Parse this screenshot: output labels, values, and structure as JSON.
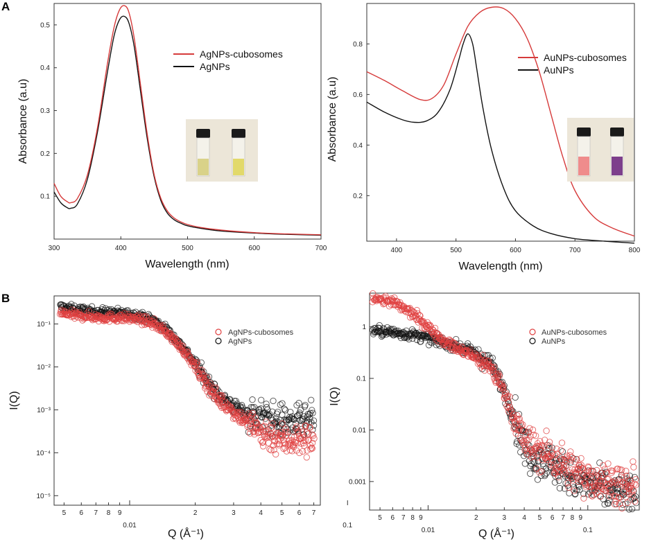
{
  "panels": {
    "a": "A",
    "b": "B"
  },
  "colors": {
    "red": "#d63a3a",
    "black": "#111111",
    "frame": "#333333",
    "photo_bg": "#ece6d8"
  },
  "icons": {
    "ag_inset": "vial-photo-icon",
    "au_inset": "vial-photo-icon"
  },
  "vial_colors": {
    "ag": [
      "#d9d289",
      "#e2d96a"
    ],
    "au": [
      "#ef8c8c",
      "#7d3f8c"
    ]
  },
  "chart_data": [
    {
      "id": "ag_abs",
      "type": "line",
      "panel": "A",
      "xlabel": "Wavelength (nm)",
      "ylabel": "Absorbance (a.u)",
      "xlim": [
        300,
        700
      ],
      "ylim": [
        0,
        0.55
      ],
      "xticks": [
        300,
        400,
        500,
        600,
        700
      ],
      "yticks": [
        0.1,
        0.2,
        0.3,
        0.4,
        0.5
      ],
      "ytick_labels": [
        "0.1",
        "0.2",
        "0.3",
        "0.4",
        "0.5"
      ],
      "series": [
        {
          "name": "AgNPs-cubosomes",
          "color": "#d63a3a",
          "x": [
            300,
            310,
            320,
            325,
            335,
            350,
            365,
            380,
            390,
            398,
            405,
            412,
            420,
            430,
            440,
            450,
            460,
            470,
            480,
            490,
            500,
            520,
            550,
            600,
            650,
            700
          ],
          "y": [
            0.13,
            0.1,
            0.087,
            0.085,
            0.095,
            0.15,
            0.26,
            0.41,
            0.495,
            0.535,
            0.545,
            0.53,
            0.47,
            0.355,
            0.24,
            0.15,
            0.095,
            0.065,
            0.049,
            0.04,
            0.034,
            0.027,
            0.021,
            0.015,
            0.012,
            0.01
          ]
        },
        {
          "name": "AgNPs",
          "color": "#111111",
          "x": [
            300,
            310,
            320,
            325,
            335,
            350,
            365,
            380,
            390,
            398,
            405,
            412,
            420,
            430,
            440,
            450,
            460,
            470,
            480,
            490,
            500,
            520,
            550,
            600,
            650,
            700
          ],
          "y": [
            0.11,
            0.085,
            0.073,
            0.072,
            0.082,
            0.14,
            0.25,
            0.39,
            0.475,
            0.512,
            0.52,
            0.505,
            0.45,
            0.34,
            0.23,
            0.145,
            0.09,
            0.06,
            0.045,
            0.037,
            0.031,
            0.025,
            0.019,
            0.014,
            0.011,
            0.009
          ]
        }
      ]
    },
    {
      "id": "au_abs",
      "type": "line",
      "panel": "A",
      "xlabel": "Wavelength (nm)",
      "ylabel": "Absorbance (a.u)",
      "xlim": [
        350,
        800
      ],
      "ylim": [
        0.02,
        0.96
      ],
      "xticks": [
        400,
        500,
        600,
        700,
        800
      ],
      "yticks": [
        0.2,
        0.4,
        0.6,
        0.8
      ],
      "ytick_labels": [
        "0.2",
        "0.4",
        "0.6",
        "0.8"
      ],
      "series": [
        {
          "name": "AuNPs-cubosomes",
          "color": "#d63a3a",
          "x": [
            350,
            380,
            410,
            440,
            460,
            480,
            500,
            520,
            540,
            560,
            580,
            600,
            620,
            640,
            660,
            680,
            700,
            730,
            760,
            800
          ],
          "y": [
            0.69,
            0.655,
            0.615,
            0.58,
            0.585,
            0.64,
            0.76,
            0.87,
            0.925,
            0.945,
            0.94,
            0.9,
            0.82,
            0.69,
            0.52,
            0.35,
            0.22,
            0.12,
            0.075,
            0.04
          ]
        },
        {
          "name": "AuNPs",
          "color": "#111111",
          "x": [
            350,
            380,
            410,
            430,
            450,
            470,
            490,
            505,
            512,
            520,
            528,
            535,
            545,
            560,
            580,
            600,
            630,
            660,
            700,
            750,
            800
          ],
          "y": [
            0.57,
            0.53,
            0.5,
            0.49,
            0.495,
            0.53,
            0.62,
            0.74,
            0.8,
            0.84,
            0.8,
            0.7,
            0.55,
            0.38,
            0.23,
            0.14,
            0.08,
            0.05,
            0.03,
            0.02,
            0.012
          ]
        }
      ]
    },
    {
      "id": "ag_saxs",
      "type": "scatter",
      "panel": "B",
      "xlabel": "Q (Å⁻¹)",
      "ylabel": "I(Q)",
      "xscale": "log",
      "yscale": "log",
      "xlim": [
        0.0045,
        0.075
      ],
      "ylim": [
        6e-06,
        0.45
      ],
      "xticks_major": [
        0.01,
        0.1
      ],
      "xtick_major_labels": [
        "0.01",
        "0.1"
      ],
      "xticks_minor": [
        0.005,
        0.006,
        0.007,
        0.008,
        0.009,
        0.02,
        0.03,
        0.04,
        0.05,
        0.06,
        0.07
      ],
      "xtick_minor_labels": [
        "5",
        "6",
        "7",
        "8",
        "9",
        "2",
        "3",
        "4",
        "5",
        "6",
        "7"
      ],
      "yticks": [
        1e-05,
        0.0001,
        0.001,
        0.01,
        0.1
      ],
      "ytick_labels": [
        "10⁻⁵",
        "10⁻⁴",
        "10⁻³",
        "10⁻²",
        "10⁻¹"
      ],
      "series": [
        {
          "name": "AgNPs",
          "color": "#111111",
          "x": [
            0.0048,
            0.0055,
            0.0065,
            0.0075,
            0.009,
            0.011,
            0.013,
            0.015,
            0.018,
            0.02,
            0.022,
            0.025,
            0.03,
            0.035,
            0.04,
            0.045,
            0.05,
            0.055,
            0.06,
            0.065,
            0.07
          ],
          "y": [
            0.25,
            0.22,
            0.2,
            0.19,
            0.18,
            0.16,
            0.12,
            0.07,
            0.025,
            0.012,
            0.006,
            0.0025,
            0.0012,
            0.0008,
            0.0007,
            0.0006,
            0.00055,
            0.0005,
            0.0005,
            0.0005,
            0.0006
          ]
        },
        {
          "name": "AgNPs-cubosomes",
          "color": "#e04040",
          "x": [
            0.0048,
            0.0055,
            0.0065,
            0.0075,
            0.009,
            0.011,
            0.013,
            0.015,
            0.018,
            0.02,
            0.022,
            0.025,
            0.03,
            0.035,
            0.04,
            0.045,
            0.05,
            0.055,
            0.06,
            0.065,
            0.07
          ],
          "y": [
            0.18,
            0.16,
            0.15,
            0.14,
            0.14,
            0.13,
            0.1,
            0.06,
            0.022,
            0.01,
            0.005,
            0.002,
            0.0009,
            0.0005,
            0.0003,
            0.00025,
            0.0002,
            0.0002,
            0.0002,
            0.0002,
            0.0002
          ]
        }
      ]
    },
    {
      "id": "au_saxs",
      "type": "scatter",
      "panel": "B",
      "xlabel": "Q (Å⁻¹)",
      "ylabel": "I(Q)",
      "xscale": "log",
      "yscale": "log",
      "xlim": [
        0.0043,
        0.21
      ],
      "ylim": [
        0.00028,
        4.5
      ],
      "xticks_major": [
        0.01,
        0.1
      ],
      "xtick_major_labels": [
        "0.01",
        "0.1"
      ],
      "xticks_minor": [
        0.005,
        0.006,
        0.007,
        0.008,
        0.009,
        0.02,
        0.03,
        0.04,
        0.05,
        0.06,
        0.07,
        0.08,
        0.09
      ],
      "xtick_minor_labels": [
        "5",
        "6",
        "7",
        "8",
        "9",
        "2",
        "3",
        "4",
        "5",
        "6",
        "7",
        "8",
        "9"
      ],
      "yticks": [
        0.001,
        0.01,
        0.1,
        1
      ],
      "ytick_labels": [
        "0.001",
        "0.01",
        "0.1",
        "1"
      ],
      "series": [
        {
          "name": "AuNPs",
          "color": "#111111",
          "x": [
            0.0045,
            0.006,
            0.008,
            0.01,
            0.012,
            0.015,
            0.018,
            0.02,
            0.025,
            0.03,
            0.035,
            0.04,
            0.045,
            0.05,
            0.06,
            0.07,
            0.08,
            0.1,
            0.13,
            0.16,
            0.2
          ],
          "y": [
            0.85,
            0.78,
            0.7,
            0.6,
            0.52,
            0.42,
            0.35,
            0.3,
            0.18,
            0.06,
            0.015,
            0.005,
            0.0035,
            0.003,
            0.0022,
            0.0016,
            0.0012,
            0.0009,
            0.0007,
            0.0006,
            0.0005
          ]
        },
        {
          "name": "AuNPs-cubosomes",
          "color": "#e04040",
          "x": [
            0.0045,
            0.006,
            0.008,
            0.01,
            0.012,
            0.015,
            0.018,
            0.02,
            0.025,
            0.03,
            0.035,
            0.04,
            0.045,
            0.05,
            0.06,
            0.07,
            0.08,
            0.1,
            0.13,
            0.16,
            0.2
          ],
          "y": [
            3.8,
            3.0,
            1.8,
            1.0,
            0.6,
            0.38,
            0.3,
            0.25,
            0.16,
            0.055,
            0.015,
            0.006,
            0.0045,
            0.004,
            0.003,
            0.0022,
            0.0016,
            0.0012,
            0.001,
            0.0008,
            0.0007
          ]
        }
      ]
    }
  ]
}
